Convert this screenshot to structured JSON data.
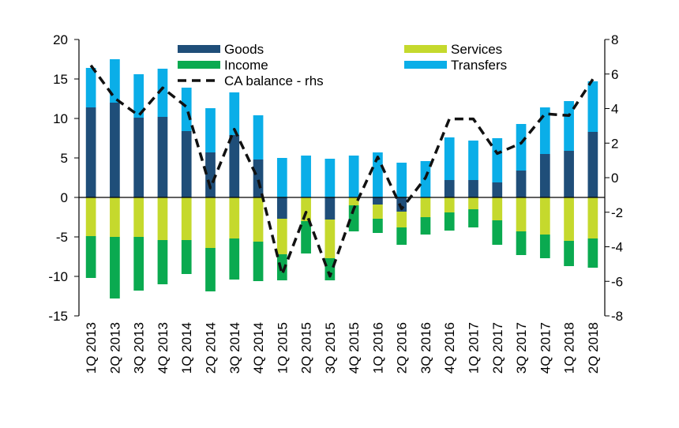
{
  "chart_data": {
    "type": "bar",
    "stacked": true,
    "categories": [
      "1Q 2013",
      "2Q 2013",
      "3Q 2013",
      "4Q 2013",
      "1Q 2014",
      "2Q 2014",
      "3Q 2014",
      "4Q 2014",
      "1Q 2015",
      "2Q 2015",
      "3Q 2015",
      "4Q 2015",
      "1Q 2016",
      "2Q 2016",
      "3Q 2016",
      "4Q 2016",
      "1Q 2017",
      "2Q 2017",
      "3Q 2017",
      "4Q 2017",
      "1Q 2018",
      "2Q 2018"
    ],
    "series": [
      {
        "name": "Goods",
        "color": "#1f4e79",
        "values": [
          11.4,
          12.0,
          10.1,
          10.2,
          8.4,
          5.7,
          7.9,
          4.8,
          -2.7,
          0.0,
          -2.8,
          0.0,
          -0.9,
          -1.8,
          0.0,
          2.2,
          2.2,
          1.9,
          3.4,
          5.5,
          5.9,
          8.3
        ]
      },
      {
        "name": "Services",
        "color": "#c5d92d",
        "values": [
          -4.9,
          -5.0,
          -5.0,
          -5.4,
          -5.4,
          -6.4,
          -5.2,
          -5.6,
          -4.5,
          -3.0,
          -4.9,
          -1.0,
          -1.8,
          -2.0,
          -2.5,
          -1.9,
          -1.5,
          -2.9,
          -4.3,
          -4.7,
          -5.5,
          -5.2
        ]
      },
      {
        "name": "Income",
        "color": "#0aaa50",
        "values": [
          -5.3,
          -7.8,
          -6.8,
          -5.6,
          -4.3,
          -5.5,
          -5.2,
          -5.0,
          -3.3,
          -4.1,
          -2.8,
          -3.3,
          -1.8,
          -2.2,
          -2.2,
          -2.3,
          -2.3,
          -3.1,
          -3.0,
          -3.0,
          -3.2,
          -3.7
        ]
      },
      {
        "name": "Transfers",
        "color": "#0aaee8",
        "values": [
          5.0,
          5.5,
          5.5,
          6.1,
          5.5,
          5.6,
          5.4,
          5.6,
          5.0,
          5.3,
          4.9,
          5.3,
          5.7,
          4.4,
          4.6,
          5.4,
          5.0,
          5.6,
          5.9,
          5.9,
          6.3,
          6.4
        ]
      },
      {
        "name": "CA balance - rhs",
        "axis": "right",
        "color": "#111111",
        "style": "dashed",
        "values": [
          6.5,
          4.6,
          3.6,
          5.2,
          4.1,
          -0.6,
          2.8,
          -0.1,
          -5.6,
          -2.0,
          -5.7,
          -1.8,
          1.2,
          -1.8,
          0.0,
          3.4,
          3.4,
          1.4,
          2.0,
          3.7,
          3.6,
          5.7
        ]
      }
    ],
    "y_left": {
      "min": -15,
      "max": 20,
      "ticks": [
        -15,
        -10,
        -5,
        0,
        5,
        10,
        15,
        20
      ]
    },
    "y_right": {
      "min": -8,
      "max": 8,
      "ticks": [
        -8,
        -6,
        -4,
        -2,
        0,
        2,
        4,
        6,
        8
      ]
    },
    "legend": {
      "placement": "top",
      "entries": [
        "Goods",
        "Services",
        "Income",
        "Transfers",
        "CA balance - rhs"
      ]
    },
    "title": "",
    "xlabel": "",
    "ylabel": "",
    "grid": false
  }
}
